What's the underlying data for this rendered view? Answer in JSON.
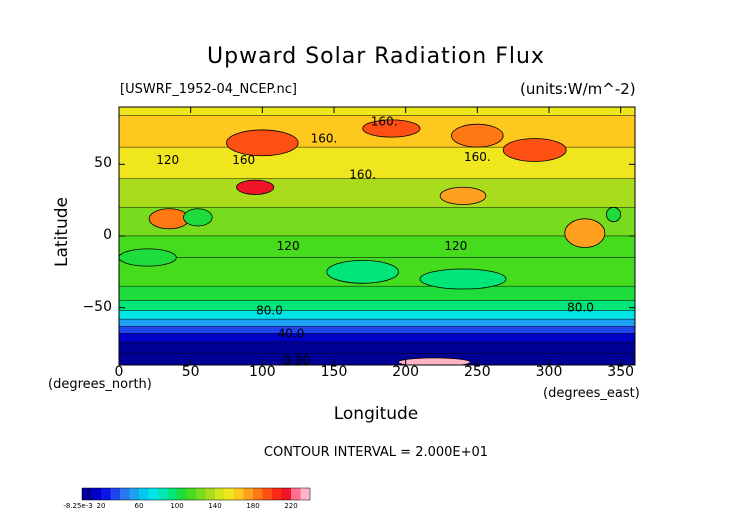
{
  "chart_data": {
    "type": "heatmap",
    "title": "Upward Solar Radiation Flux",
    "source_label": "[USWRF_1952-04_NCEP.nc]",
    "units_label": "(units:W/m^-2)",
    "xlabel": "Longitude",
    "ylabel": "Latitude",
    "x_unit_label": "(degrees_north)",
    "x_unit_label_2": "(degrees_east)",
    "xlim": [
      0,
      360
    ],
    "ylim": [
      -90,
      90
    ],
    "x_ticks": [
      "0",
      "50",
      "100",
      "150",
      "200",
      "250",
      "300",
      "350"
    ],
    "x_tick_values": [
      0,
      50,
      100,
      150,
      200,
      250,
      300,
      350
    ],
    "y_ticks": [
      "50",
      "0",
      "−50"
    ],
    "y_tick_values": [
      50,
      0,
      -50
    ],
    "contour_interval_text": "CONTOUR INTERVAL = 2.000E+01",
    "contour_labels": [
      {
        "text": "160.",
        "lon": 185,
        "lat": 80
      },
      {
        "text": "160.",
        "lon": 143,
        "lat": 68
      },
      {
        "text": "160.",
        "lon": 250,
        "lat": 55
      },
      {
        "text": "160.",
        "lon": 170,
        "lat": 43
      },
      {
        "text": "120",
        "lon": 34,
        "lat": 53
      },
      {
        "text": "160",
        "lon": 87,
        "lat": 53
      },
      {
        "text": "120",
        "lon": 118,
        "lat": -7
      },
      {
        "text": "120",
        "lon": 235,
        "lat": -7
      },
      {
        "text": "80.0",
        "lon": 105,
        "lat": -52
      },
      {
        "text": "80.0",
        "lon": 322,
        "lat": -50
      },
      {
        "text": "40.0",
        "lon": 120,
        "lat": -68
      },
      {
        "text": "0.00",
        "lon": 124,
        "lat": -87
      }
    ],
    "latitude_bands": [
      {
        "lat_from": 90,
        "lat_to": 84,
        "value": 150
      },
      {
        "lat_from": 84,
        "lat_to": 62,
        "value": 165
      },
      {
        "lat_from": 62,
        "lat_to": 40,
        "value": 150
      },
      {
        "lat_from": 40,
        "lat_to": 20,
        "value": 130
      },
      {
        "lat_from": 20,
        "lat_to": 0,
        "value": 125
      },
      {
        "lat_from": 0,
        "lat_to": -15,
        "value": 115
      },
      {
        "lat_from": -15,
        "lat_to": -35,
        "value": 110
      },
      {
        "lat_from": -35,
        "lat_to": -45,
        "value": 100
      },
      {
        "lat_from": -45,
        "lat_to": -52,
        "value": 90
      },
      {
        "lat_from": -52,
        "lat_to": -58,
        "value": 75
      },
      {
        "lat_from": -58,
        "lat_to": -63,
        "value": 55
      },
      {
        "lat_from": -63,
        "lat_to": -68,
        "value": 35
      },
      {
        "lat_from": -68,
        "lat_to": -74,
        "value": 15
      },
      {
        "lat_from": -74,
        "lat_to": -82,
        "value": 8
      },
      {
        "lat_from": -82,
        "lat_to": -90,
        "value": 2
      }
    ],
    "hotspots": [
      {
        "lon": 100,
        "lat": 65,
        "rlon": 25,
        "rlat": 9,
        "value": 195
      },
      {
        "lon": 95,
        "lat": 34,
        "rlon": 13,
        "rlat": 5,
        "value": 215
      },
      {
        "lon": 190,
        "lat": 75,
        "rlon": 20,
        "rlat": 6,
        "value": 195
      },
      {
        "lon": 290,
        "lat": 60,
        "rlon": 22,
        "rlat": 8,
        "value": 195
      },
      {
        "lon": 250,
        "lat": 70,
        "rlon": 18,
        "rlat": 8,
        "value": 180
      },
      {
        "lon": 35,
        "lat": 12,
        "rlon": 14,
        "rlat": 7,
        "value": 180
      },
      {
        "lon": 325,
        "lat": 2,
        "rlon": 14,
        "rlat": 10,
        "value": 170
      },
      {
        "lon": 240,
        "lat": 28,
        "rlon": 16,
        "rlat": 6,
        "value": 170
      },
      {
        "lon": 55,
        "lat": 13,
        "rlon": 10,
        "rlat": 6,
        "value": 100
      },
      {
        "lon": 345,
        "lat": 15,
        "rlon": 5,
        "rlat": 5,
        "value": 100
      },
      {
        "lon": 170,
        "lat": -25,
        "rlon": 25,
        "rlat": 8,
        "value": 95
      },
      {
        "lon": 20,
        "lat": -15,
        "rlon": 20,
        "rlat": 6,
        "value": 100
      },
      {
        "lon": 240,
        "lat": -30,
        "rlon": 30,
        "rlat": 7,
        "value": 95
      },
      {
        "lon": 220,
        "lat": -88,
        "rlon": 25,
        "rlat": 3,
        "value": 230
      }
    ],
    "colorbar": {
      "tick_labels": [
        "-8.25e-3",
        "20",
        "60",
        "100",
        "140",
        "180",
        "220"
      ],
      "tick_values": [
        0,
        20,
        60,
        100,
        140,
        180,
        220
      ],
      "levels": [
        0,
        10,
        20,
        30,
        40,
        50,
        60,
        70,
        80,
        90,
        100,
        110,
        120,
        130,
        140,
        150,
        160,
        170,
        180,
        190,
        200,
        210,
        220,
        230
      ],
      "colors": [
        "#000096",
        "#0000c8",
        "#0a14e6",
        "#1e46f0",
        "#2878f0",
        "#1ea0f0",
        "#00c8f0",
        "#00e6e6",
        "#00e6b4",
        "#00e678",
        "#1edc3c",
        "#46dc1e",
        "#78dc1e",
        "#aadc1e",
        "#d2e61e",
        "#f0e61e",
        "#ffc81e",
        "#ffa01e",
        "#ff7814",
        "#ff5014",
        "#ff2814",
        "#f01428",
        "#ff6e8c",
        "#ffb4c8"
      ]
    }
  }
}
